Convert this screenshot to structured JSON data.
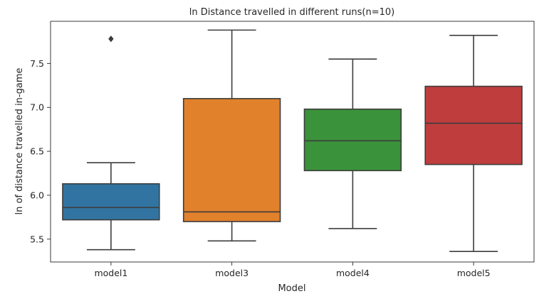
{
  "chart_data": {
    "type": "box",
    "title": "ln Distance travelled in different runs(n=10)",
    "xlabel": "Model",
    "ylabel": "ln of distance travelled in-game",
    "categories": [
      "model1",
      "model3",
      "model4",
      "model5"
    ],
    "ylim": [
      5.24,
      7.98
    ],
    "yticks": [
      5.5,
      6.0,
      6.5,
      7.0,
      7.5
    ],
    "ytick_labels": [
      "5.5",
      "6.0",
      "6.5",
      "7.0",
      "7.5"
    ],
    "grid": false,
    "boxes": [
      {
        "category": "model1",
        "color": "#3274a1",
        "whisker_low": 5.38,
        "q1": 5.72,
        "median": 5.86,
        "q3": 6.13,
        "whisker_high": 6.37,
        "outliers": [
          7.78
        ]
      },
      {
        "category": "model3",
        "color": "#e1812c",
        "whisker_low": 5.48,
        "q1": 5.7,
        "median": 5.81,
        "q3": 7.1,
        "whisker_high": 7.88,
        "outliers": []
      },
      {
        "category": "model4",
        "color": "#3a923a",
        "whisker_low": 5.62,
        "q1": 6.28,
        "median": 6.62,
        "q3": 6.98,
        "whisker_high": 7.55,
        "outliers": []
      },
      {
        "category": "model5",
        "color": "#c03d3e",
        "whisker_low": 5.36,
        "q1": 6.35,
        "median": 6.82,
        "q3": 7.24,
        "whisker_high": 7.82,
        "outliers": []
      }
    ]
  }
}
